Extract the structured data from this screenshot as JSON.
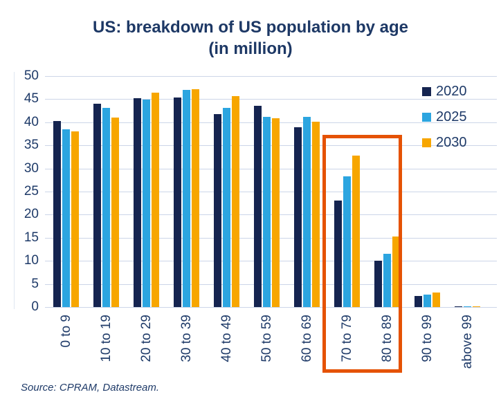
{
  "header": {
    "title": "US: breakdown of US population by age",
    "subtitle": "(in million)"
  },
  "chart_data": {
    "type": "bar",
    "title": "US: breakdown of US population by age",
    "subtitle": "(in million)",
    "categories": [
      "0 to 9",
      "10 to 19",
      "20 to 29",
      "30 to 39",
      "40 to 49",
      "50 to 59",
      "60 to 69",
      "70 to 79",
      "80 to 89",
      "90 to 99",
      "above 99"
    ],
    "series": [
      {
        "name": "2020",
        "color": "#152450",
        "values": [
          40.3,
          44.0,
          45.2,
          45.3,
          41.8,
          43.5,
          38.9,
          23.1,
          10.1,
          2.4,
          0.1
        ]
      },
      {
        "name": "2025",
        "color": "#2ca5e0",
        "values": [
          38.5,
          43.1,
          44.9,
          47.0,
          43.1,
          41.2,
          41.2,
          28.3,
          11.6,
          2.7,
          0.2
        ]
      },
      {
        "name": "2030",
        "color": "#f7a600",
        "values": [
          38.0,
          41.0,
          46.4,
          47.2,
          45.7,
          40.8,
          40.1,
          32.8,
          15.2,
          3.2,
          0.2
        ]
      }
    ],
    "ylim": [
      0,
      50
    ],
    "ytick_step": 5,
    "grid": true,
    "grid_color": "#ccd5e8",
    "legend_position": "top-right",
    "highlight": {
      "categories": [
        "70 to 79",
        "80 to 89"
      ],
      "color": "#e55204"
    }
  },
  "footer": {
    "source": "Source: CPRAM, Datastream."
  }
}
